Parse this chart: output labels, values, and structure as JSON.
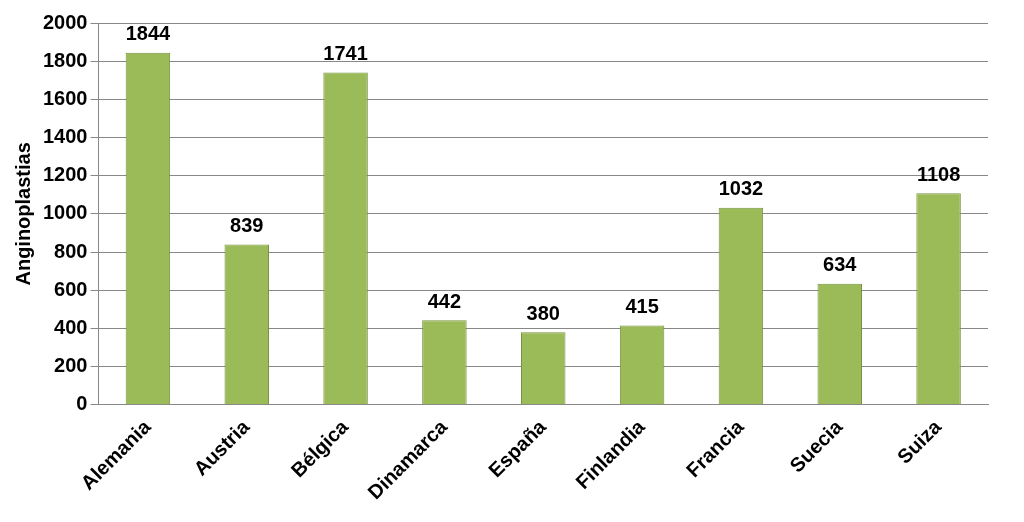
{
  "chart_data": {
    "type": "bar",
    "ylabel": "Anginoplastias",
    "categories": [
      "Alemania",
      "Austria",
      "Bélgica",
      "Dinamarca",
      "España",
      "Finlandia",
      "Francia",
      "Suecia",
      "Suiza"
    ],
    "values": [
      1844,
      839,
      1741,
      442,
      380,
      415,
      1032,
      634,
      1108
    ],
    "color": "#9bbb59",
    "ylim": [
      0,
      2000
    ],
    "yticks": [
      0,
      200,
      400,
      600,
      800,
      1000,
      1200,
      1400,
      1600,
      1800,
      2000
    ],
    "grid": "y",
    "data_labels": true
  }
}
